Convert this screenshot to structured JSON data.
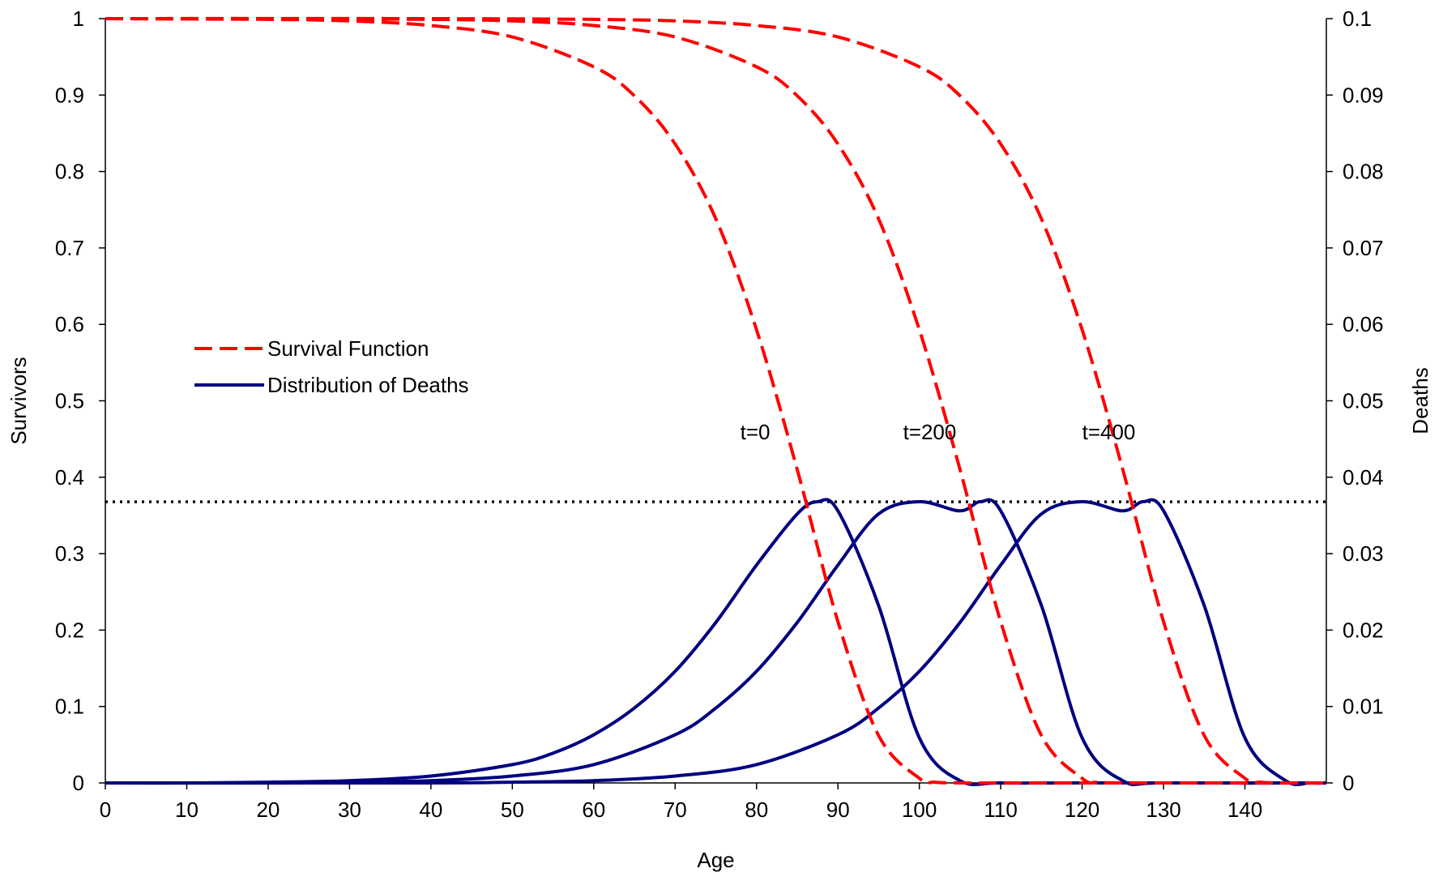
{
  "chart_data": {
    "type": "line",
    "title": "",
    "xlabel": "Age",
    "ylabel": "Survivors",
    "y2label": "Deaths",
    "xlim": [
      0,
      150
    ],
    "ylim": [
      0,
      1
    ],
    "y2lim": [
      0,
      0.1
    ],
    "x_ticks": [
      "0",
      "10",
      "20",
      "30",
      "40",
      "50",
      "60",
      "70",
      "80",
      "90",
      "100",
      "110",
      "120",
      "130",
      "140"
    ],
    "y_ticks": [
      "0",
      "0.1",
      "0.2",
      "0.3",
      "0.4",
      "0.5",
      "0.6",
      "0.7",
      "0.8",
      "0.9",
      "1"
    ],
    "y2_ticks": [
      "0",
      "0.01",
      "0.02",
      "0.03",
      "0.04",
      "0.05",
      "0.06",
      "0.07",
      "0.08",
      "0.09",
      "0.1"
    ],
    "grid": false,
    "legend_position": "center-left",
    "legend": [
      {
        "label": "Survival Function",
        "style": "dashed",
        "color": "#ff0000"
      },
      {
        "label": "Distribution of Deaths",
        "style": "solid",
        "color": "#000080"
      }
    ],
    "reference_line": {
      "y": 0.3679,
      "axis": "left",
      "style": "dotted",
      "color": "#000000"
    },
    "annotations": [
      {
        "text": "t=0",
        "x": 78
      },
      {
        "text": "t=200",
        "x": 98
      },
      {
        "text": "t=400",
        "x": 120
      }
    ],
    "series": [
      {
        "group": "Survival Function",
        "axis": "left",
        "shift": 0,
        "x": [
          0,
          20,
          30,
          40,
          50,
          60,
          65,
          70,
          75,
          80,
          85,
          90,
          95,
          100,
          102,
          105,
          110,
          120,
          130,
          140,
          150
        ],
        "y": [
          1.0,
          0.999,
          0.997,
          0.991,
          0.976,
          0.937,
          0.899,
          0.836,
          0.738,
          0.593,
          0.41,
          0.211,
          0.062,
          0.006,
          0.001,
          0.0,
          0.0,
          0.0,
          0.0,
          0.0,
          0.0
        ]
      },
      {
        "group": "Survival Function",
        "axis": "left",
        "shift": 20,
        "x": [
          0,
          20,
          40,
          50,
          60,
          70,
          80,
          85,
          90,
          95,
          100,
          105,
          110,
          115,
          120,
          122,
          125,
          130,
          140,
          150
        ],
        "y": [
          1.0,
          1.0,
          0.999,
          0.997,
          0.991,
          0.976,
          0.937,
          0.899,
          0.836,
          0.738,
          0.593,
          0.41,
          0.211,
          0.062,
          0.006,
          0.001,
          0.0,
          0.0,
          0.0,
          0.0
        ]
      },
      {
        "group": "Survival Function",
        "axis": "left",
        "shift": 40,
        "x": [
          0,
          40,
          60,
          70,
          80,
          90,
          100,
          105,
          110,
          115,
          120,
          125,
          130,
          135,
          140,
          142,
          145,
          150
        ],
        "y": [
          1.0,
          1.0,
          0.999,
          0.997,
          0.991,
          0.976,
          0.937,
          0.899,
          0.836,
          0.738,
          0.593,
          0.41,
          0.211,
          0.062,
          0.006,
          0.001,
          0.0,
          0.0
        ]
      },
      {
        "group": "Distribution of Deaths",
        "axis": "right",
        "shift": 0,
        "x": [
          0,
          10,
          20,
          30,
          40,
          50,
          55,
          60,
          65,
          70,
          75,
          80,
          85,
          87.5,
          90,
          95,
          100,
          105,
          110,
          120,
          150
        ],
        "y": [
          0.0,
          0.0,
          0.0001,
          0.0003,
          0.0009,
          0.0024,
          0.0039,
          0.0063,
          0.0098,
          0.0146,
          0.021,
          0.0285,
          0.0352,
          0.0368,
          0.0356,
          0.0232,
          0.0059,
          0.0003,
          0.0,
          0.0,
          0.0
        ]
      },
      {
        "group": "Distribution of Deaths",
        "axis": "right",
        "shift": 20,
        "x": [
          0,
          20,
          30,
          40,
          50,
          60,
          70,
          75,
          80,
          85,
          90,
          95,
          100,
          105,
          107.5,
          110,
          115,
          120,
          125,
          130,
          150
        ],
        "y": [
          0.0,
          0.0,
          0.0001,
          0.0003,
          0.0009,
          0.0024,
          0.0063,
          0.0098,
          0.0146,
          0.021,
          0.0285,
          0.0352,
          0.0368,
          0.0356,
          0.0368,
          0.0356,
          0.0232,
          0.0059,
          0.0003,
          0.0,
          0.0
        ]
      },
      {
        "group": "Distribution of Deaths",
        "axis": "right",
        "shift": 40,
        "x": [
          0,
          40,
          50,
          60,
          70,
          80,
          90,
          95,
          100,
          105,
          110,
          115,
          120,
          125,
          127.5,
          130,
          135,
          140,
          145,
          148,
          150
        ],
        "y": [
          0.0,
          0.0,
          0.0001,
          0.0003,
          0.0009,
          0.0024,
          0.0063,
          0.0098,
          0.0146,
          0.021,
          0.0285,
          0.0352,
          0.0368,
          0.0356,
          0.0368,
          0.0356,
          0.0232,
          0.0059,
          0.0003,
          0.0,
          0.0
        ]
      }
    ]
  }
}
